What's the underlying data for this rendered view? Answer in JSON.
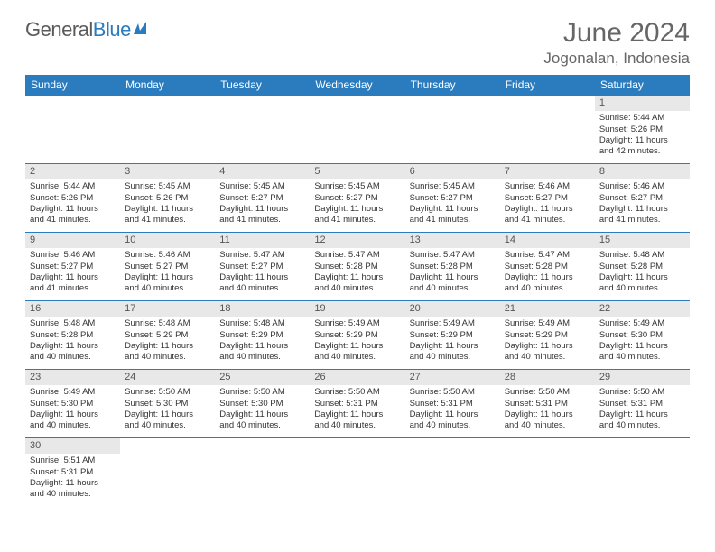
{
  "brand": {
    "part1": "General",
    "part2": "Blue"
  },
  "title": "June 2024",
  "location": "Jogonalan, Indonesia",
  "logo_color": "#2b7bbf",
  "header_bg": "#2b7bbf",
  "header_fg": "#ffffff",
  "daynum_bg": "#e8e8e8",
  "row_border": "#2b7bbf",
  "weekdays": [
    "Sunday",
    "Monday",
    "Tuesday",
    "Wednesday",
    "Thursday",
    "Friday",
    "Saturday"
  ],
  "weeks": [
    [
      null,
      null,
      null,
      null,
      null,
      null,
      {
        "n": "1",
        "sr": "Sunrise: 5:44 AM",
        "ss": "Sunset: 5:26 PM",
        "d1": "Daylight: 11 hours",
        "d2": "and 42 minutes."
      }
    ],
    [
      {
        "n": "2",
        "sr": "Sunrise: 5:44 AM",
        "ss": "Sunset: 5:26 PM",
        "d1": "Daylight: 11 hours",
        "d2": "and 41 minutes."
      },
      {
        "n": "3",
        "sr": "Sunrise: 5:45 AM",
        "ss": "Sunset: 5:26 PM",
        "d1": "Daylight: 11 hours",
        "d2": "and 41 minutes."
      },
      {
        "n": "4",
        "sr": "Sunrise: 5:45 AM",
        "ss": "Sunset: 5:27 PM",
        "d1": "Daylight: 11 hours",
        "d2": "and 41 minutes."
      },
      {
        "n": "5",
        "sr": "Sunrise: 5:45 AM",
        "ss": "Sunset: 5:27 PM",
        "d1": "Daylight: 11 hours",
        "d2": "and 41 minutes."
      },
      {
        "n": "6",
        "sr": "Sunrise: 5:45 AM",
        "ss": "Sunset: 5:27 PM",
        "d1": "Daylight: 11 hours",
        "d2": "and 41 minutes."
      },
      {
        "n": "7",
        "sr": "Sunrise: 5:46 AM",
        "ss": "Sunset: 5:27 PM",
        "d1": "Daylight: 11 hours",
        "d2": "and 41 minutes."
      },
      {
        "n": "8",
        "sr": "Sunrise: 5:46 AM",
        "ss": "Sunset: 5:27 PM",
        "d1": "Daylight: 11 hours",
        "d2": "and 41 minutes."
      }
    ],
    [
      {
        "n": "9",
        "sr": "Sunrise: 5:46 AM",
        "ss": "Sunset: 5:27 PM",
        "d1": "Daylight: 11 hours",
        "d2": "and 41 minutes."
      },
      {
        "n": "10",
        "sr": "Sunrise: 5:46 AM",
        "ss": "Sunset: 5:27 PM",
        "d1": "Daylight: 11 hours",
        "d2": "and 40 minutes."
      },
      {
        "n": "11",
        "sr": "Sunrise: 5:47 AM",
        "ss": "Sunset: 5:27 PM",
        "d1": "Daylight: 11 hours",
        "d2": "and 40 minutes."
      },
      {
        "n": "12",
        "sr": "Sunrise: 5:47 AM",
        "ss": "Sunset: 5:28 PM",
        "d1": "Daylight: 11 hours",
        "d2": "and 40 minutes."
      },
      {
        "n": "13",
        "sr": "Sunrise: 5:47 AM",
        "ss": "Sunset: 5:28 PM",
        "d1": "Daylight: 11 hours",
        "d2": "and 40 minutes."
      },
      {
        "n": "14",
        "sr": "Sunrise: 5:47 AM",
        "ss": "Sunset: 5:28 PM",
        "d1": "Daylight: 11 hours",
        "d2": "and 40 minutes."
      },
      {
        "n": "15",
        "sr": "Sunrise: 5:48 AM",
        "ss": "Sunset: 5:28 PM",
        "d1": "Daylight: 11 hours",
        "d2": "and 40 minutes."
      }
    ],
    [
      {
        "n": "16",
        "sr": "Sunrise: 5:48 AM",
        "ss": "Sunset: 5:28 PM",
        "d1": "Daylight: 11 hours",
        "d2": "and 40 minutes."
      },
      {
        "n": "17",
        "sr": "Sunrise: 5:48 AM",
        "ss": "Sunset: 5:29 PM",
        "d1": "Daylight: 11 hours",
        "d2": "and 40 minutes."
      },
      {
        "n": "18",
        "sr": "Sunrise: 5:48 AM",
        "ss": "Sunset: 5:29 PM",
        "d1": "Daylight: 11 hours",
        "d2": "and 40 minutes."
      },
      {
        "n": "19",
        "sr": "Sunrise: 5:49 AM",
        "ss": "Sunset: 5:29 PM",
        "d1": "Daylight: 11 hours",
        "d2": "and 40 minutes."
      },
      {
        "n": "20",
        "sr": "Sunrise: 5:49 AM",
        "ss": "Sunset: 5:29 PM",
        "d1": "Daylight: 11 hours",
        "d2": "and 40 minutes."
      },
      {
        "n": "21",
        "sr": "Sunrise: 5:49 AM",
        "ss": "Sunset: 5:29 PM",
        "d1": "Daylight: 11 hours",
        "d2": "and 40 minutes."
      },
      {
        "n": "22",
        "sr": "Sunrise: 5:49 AM",
        "ss": "Sunset: 5:30 PM",
        "d1": "Daylight: 11 hours",
        "d2": "and 40 minutes."
      }
    ],
    [
      {
        "n": "23",
        "sr": "Sunrise: 5:49 AM",
        "ss": "Sunset: 5:30 PM",
        "d1": "Daylight: 11 hours",
        "d2": "and 40 minutes."
      },
      {
        "n": "24",
        "sr": "Sunrise: 5:50 AM",
        "ss": "Sunset: 5:30 PM",
        "d1": "Daylight: 11 hours",
        "d2": "and 40 minutes."
      },
      {
        "n": "25",
        "sr": "Sunrise: 5:50 AM",
        "ss": "Sunset: 5:30 PM",
        "d1": "Daylight: 11 hours",
        "d2": "and 40 minutes."
      },
      {
        "n": "26",
        "sr": "Sunrise: 5:50 AM",
        "ss": "Sunset: 5:31 PM",
        "d1": "Daylight: 11 hours",
        "d2": "and 40 minutes."
      },
      {
        "n": "27",
        "sr": "Sunrise: 5:50 AM",
        "ss": "Sunset: 5:31 PM",
        "d1": "Daylight: 11 hours",
        "d2": "and 40 minutes."
      },
      {
        "n": "28",
        "sr": "Sunrise: 5:50 AM",
        "ss": "Sunset: 5:31 PM",
        "d1": "Daylight: 11 hours",
        "d2": "and 40 minutes."
      },
      {
        "n": "29",
        "sr": "Sunrise: 5:50 AM",
        "ss": "Sunset: 5:31 PM",
        "d1": "Daylight: 11 hours",
        "d2": "and 40 minutes."
      }
    ],
    [
      {
        "n": "30",
        "sr": "Sunrise: 5:51 AM",
        "ss": "Sunset: 5:31 PM",
        "d1": "Daylight: 11 hours",
        "d2": "and 40 minutes."
      },
      null,
      null,
      null,
      null,
      null,
      null
    ]
  ]
}
